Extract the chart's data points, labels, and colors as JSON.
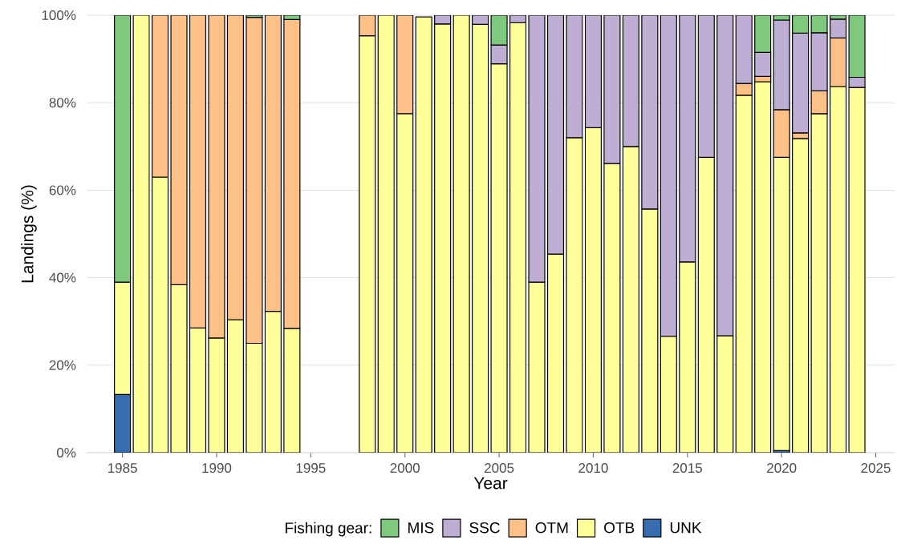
{
  "chart_data": {
    "type": "bar",
    "stacked": true,
    "xlabel": "Year",
    "ylabel": "Landings (%)",
    "legend_title": "Fishing gear:",
    "legend": "bottom",
    "grid": "y",
    "x": [
      1985,
      1986,
      1987,
      1988,
      1989,
      1990,
      1991,
      1992,
      1993,
      1994,
      1998,
      1999,
      2000,
      2001,
      2002,
      2003,
      2004,
      2005,
      2006,
      2007,
      2008,
      2009,
      2010,
      2011,
      2012,
      2013,
      2014,
      2015,
      2016,
      2017,
      2018,
      2019,
      2020,
      2021,
      2022,
      2023,
      2024
    ],
    "xlim": [
      1983.1,
      2026
    ],
    "xticks": [
      1985,
      1990,
      1995,
      2000,
      2005,
      2010,
      2015,
      2020,
      2025
    ],
    "ylim": [
      0,
      100
    ],
    "yticks": [
      {
        "value": 0,
        "label": "0%"
      },
      {
        "value": 20,
        "label": "20%"
      },
      {
        "value": 40,
        "label": "40%"
      },
      {
        "value": 60,
        "label": "60%"
      },
      {
        "value": 80,
        "label": "80%"
      },
      {
        "value": 100,
        "label": "100%"
      }
    ],
    "series": [
      {
        "name": "UNK",
        "color": "#386cb0",
        "values": [
          13.3,
          null,
          null,
          null,
          null,
          null,
          null,
          null,
          null,
          null,
          null,
          null,
          null,
          null,
          null,
          null,
          null,
          null,
          null,
          null,
          null,
          null,
          null,
          null,
          null,
          null,
          null,
          null,
          null,
          null,
          null,
          null,
          0.5,
          null,
          null,
          null,
          null
        ]
      },
      {
        "name": "OTB",
        "color": "#ffff99",
        "values": [
          25.7,
          100,
          63,
          38.4,
          28.5,
          26.2,
          30.4,
          25,
          32.3,
          28.4,
          95.3,
          100,
          77.5,
          99.6,
          98,
          100,
          97.9,
          88.9,
          98.3,
          39,
          45.4,
          72,
          74.3,
          66.1,
          70,
          55.7,
          26.6,
          43.6,
          67.5,
          26.7,
          81.7,
          84.8,
          67,
          71.8,
          77.5,
          83.7,
          83.5
        ]
      },
      {
        "name": "OTM",
        "color": "#fdc086",
        "values": [
          null,
          null,
          37,
          61.6,
          71.5,
          73.8,
          69.6,
          74.5,
          67.7,
          70.6,
          4.7,
          null,
          22.5,
          null,
          null,
          null,
          null,
          null,
          null,
          null,
          null,
          null,
          null,
          null,
          null,
          null,
          null,
          null,
          null,
          null,
          2.7,
          1.2,
          10.9,
          1.3,
          5.2,
          11.1,
          null
        ]
      },
      {
        "name": "SSC",
        "color": "#beaed4",
        "values": [
          null,
          null,
          null,
          null,
          null,
          null,
          null,
          null,
          null,
          null,
          null,
          null,
          null,
          null,
          2,
          null,
          2.1,
          4.3,
          1.7,
          61,
          54.6,
          28,
          25.7,
          33.9,
          30,
          44.3,
          73.4,
          56.4,
          32.5,
          73.3,
          15.6,
          5.5,
          20.5,
          22.8,
          13.3,
          4.3,
          2.3
        ]
      },
      {
        "name": "MIS",
        "color": "#7fc97f",
        "values": [
          61,
          null,
          null,
          null,
          null,
          null,
          null,
          0.5,
          null,
          1.0,
          null,
          null,
          null,
          null,
          null,
          null,
          null,
          6.8,
          null,
          null,
          null,
          null,
          null,
          null,
          null,
          null,
          null,
          null,
          null,
          null,
          null,
          8.5,
          1.1,
          4.1,
          4,
          0.9,
          14.2
        ]
      }
    ]
  }
}
